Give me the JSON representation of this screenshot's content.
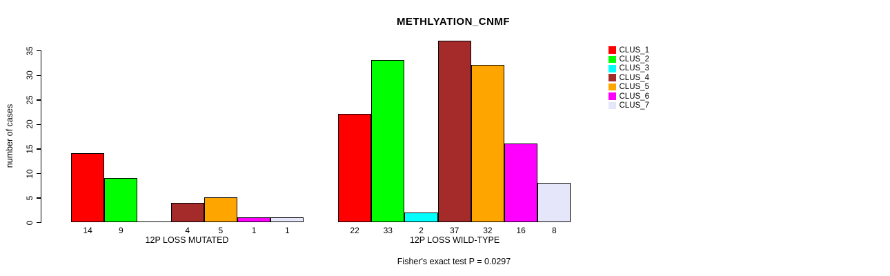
{
  "chart_data": {
    "type": "bar",
    "title": "METHLYATION_CNMF",
    "ylabel": "number of cases",
    "ylim": [
      0,
      35
    ],
    "yticks": [
      0,
      5,
      10,
      15,
      20,
      25,
      30,
      35
    ],
    "grid": false,
    "legend_position": "top-right",
    "categories": [
      "12P LOSS MUTATED",
      "12P LOSS WILD-TYPE"
    ],
    "series": [
      {
        "name": "CLUS_1",
        "color": "#FF0000",
        "values": [
          14,
          22
        ]
      },
      {
        "name": "CLUS_2",
        "color": "#00FF00",
        "values": [
          9,
          33
        ]
      },
      {
        "name": "CLUS_3",
        "color": "#00FFFF",
        "values": [
          0,
          2
        ]
      },
      {
        "name": "CLUS_4",
        "color": "#A52A2A",
        "values": [
          4,
          37
        ]
      },
      {
        "name": "CLUS_5",
        "color": "#FFA500",
        "values": [
          5,
          32
        ]
      },
      {
        "name": "CLUS_6",
        "color": "#FF00FF",
        "values": [
          1,
          16
        ]
      },
      {
        "name": "CLUS_7",
        "color": "#E6E6FA",
        "values": [
          1,
          8
        ]
      }
    ],
    "bar_value_labels": {
      "shown": true,
      "hide_zero": true
    },
    "annotation": "Fisher's exact test P = 0.0297",
    "bar_border_color": "#000000",
    "axis_color": "#000000",
    "text_color": "#000000",
    "background_color": "#FFFFFF"
  }
}
